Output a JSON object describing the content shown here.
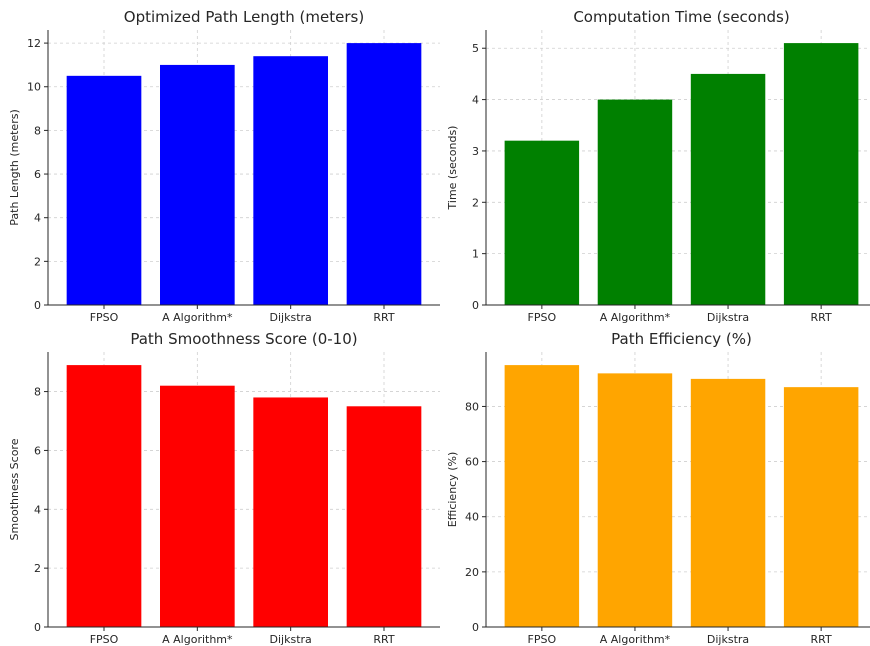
{
  "chart_data": [
    {
      "type": "bar",
      "title": "Optimized Path Length (meters)",
      "xlabel": "",
      "ylabel": "Path Length (meters)",
      "categories": [
        "FPSO",
        "A Algorithm*",
        "Dijkstra",
        "RRT"
      ],
      "values": [
        10.5,
        11.0,
        11.4,
        12.0
      ],
      "ylim": [
        0,
        12.6
      ],
      "yticks": [
        0,
        2,
        4,
        6,
        8,
        10,
        12
      ],
      "color": "#0000ff",
      "grid": true
    },
    {
      "type": "bar",
      "title": "Computation Time (seconds)",
      "xlabel": "",
      "ylabel": "Time (seconds)",
      "categories": [
        "FPSO",
        "A Algorithm*",
        "Dijkstra",
        "RRT"
      ],
      "values": [
        3.2,
        4.0,
        4.5,
        5.1
      ],
      "ylim": [
        0,
        5.355
      ],
      "yticks": [
        0,
        1,
        2,
        3,
        4,
        5
      ],
      "color": "#008000",
      "grid": true
    },
    {
      "type": "bar",
      "title": "Path Smoothness Score (0-10)",
      "xlabel": "",
      "ylabel": "Smoothness Score",
      "categories": [
        "FPSO",
        "A Algorithm*",
        "Dijkstra",
        "RRT"
      ],
      "values": [
        8.9,
        8.2,
        7.8,
        7.5
      ],
      "ylim": [
        0,
        9.345
      ],
      "yticks": [
        0,
        2,
        4,
        6,
        8
      ],
      "color": "#ff0000",
      "grid": true
    },
    {
      "type": "bar",
      "title": "Path Efficiency (%)",
      "xlabel": "",
      "ylabel": "Efficiency (%)",
      "categories": [
        "FPSO",
        "A Algorithm*",
        "Dijkstra",
        "RRT"
      ],
      "values": [
        95,
        92,
        90,
        87
      ],
      "ylim": [
        0,
        99.75
      ],
      "yticks": [
        0,
        20,
        40,
        60,
        80
      ],
      "color": "#ffa500",
      "grid": true
    }
  ]
}
